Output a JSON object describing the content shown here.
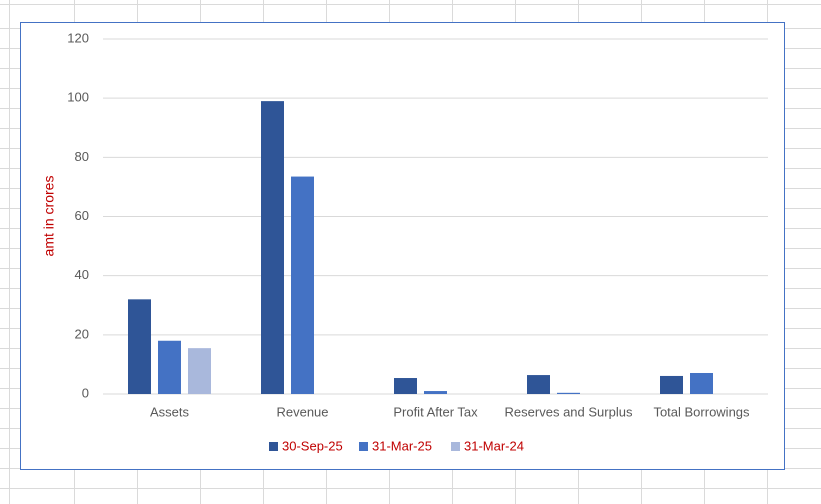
{
  "chart_data": {
    "type": "bar",
    "y_label": "amt in crores",
    "categories": [
      "Assets",
      "Revenue",
      "Profit After Tax",
      "Reserves and Surplus",
      "Total Borrowings"
    ],
    "series": [
      {
        "name": "30-Sep-25",
        "color": "#2f5597",
        "values": [
          32,
          99,
          5.4,
          6.4,
          6.1
        ]
      },
      {
        "name": "31-Mar-25",
        "color": "#4472c4",
        "values": [
          18,
          73.5,
          1,
          0.4,
          7.1
        ]
      },
      {
        "name": "31-Mar-24",
        "color": "#a9b8dc",
        "values": [
          15.5,
          null,
          null,
          null,
          null
        ]
      }
    ],
    "ylim": [
      0,
      120
    ],
    "yticks": [
      0,
      20,
      40,
      60,
      80,
      100,
      120
    ],
    "grid": true,
    "legend": "bottom",
    "legend_text_color": "#c00000",
    "y_label_color": "#c00000"
  }
}
